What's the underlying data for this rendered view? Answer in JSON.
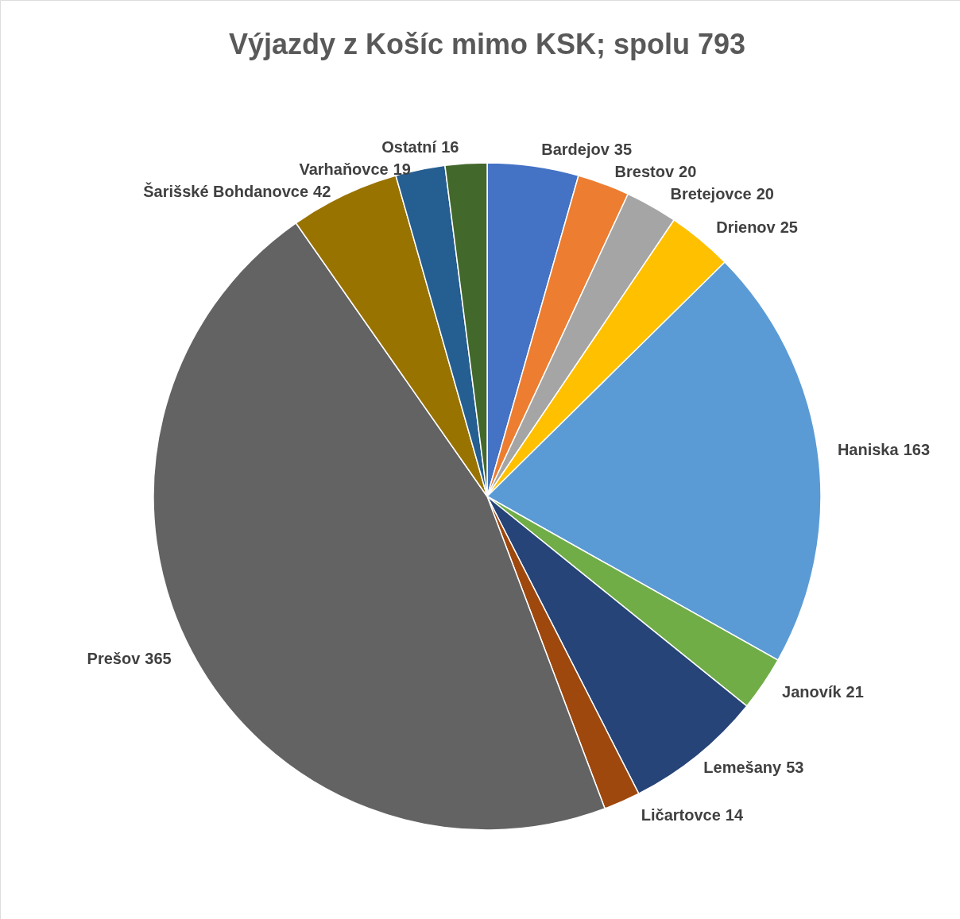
{
  "chart_data": {
    "type": "pie",
    "title": "Výjazdy z Košíc mimo KSK; spolu 793",
    "categories": [
      "Bardejov",
      "Brestov",
      "Bretejovce",
      "Drienov",
      "Haniska",
      "Janovík",
      "Lemešany",
      "Ličartovce",
      "Prešov",
      "Šarišské Bohdanovce",
      "Varhaňovce",
      "Ostatní"
    ],
    "values": [
      35,
      20,
      20,
      25,
      163,
      21,
      53,
      14,
      365,
      42,
      19,
      16
    ],
    "colors": [
      "#4472c4",
      "#ed7d31",
      "#a5a5a5",
      "#ffc000",
      "#5b9bd5",
      "#70ad47",
      "#264478",
      "#9e480e",
      "#636363",
      "#997300",
      "#255e91",
      "#43682b"
    ],
    "data_labels": true
  }
}
